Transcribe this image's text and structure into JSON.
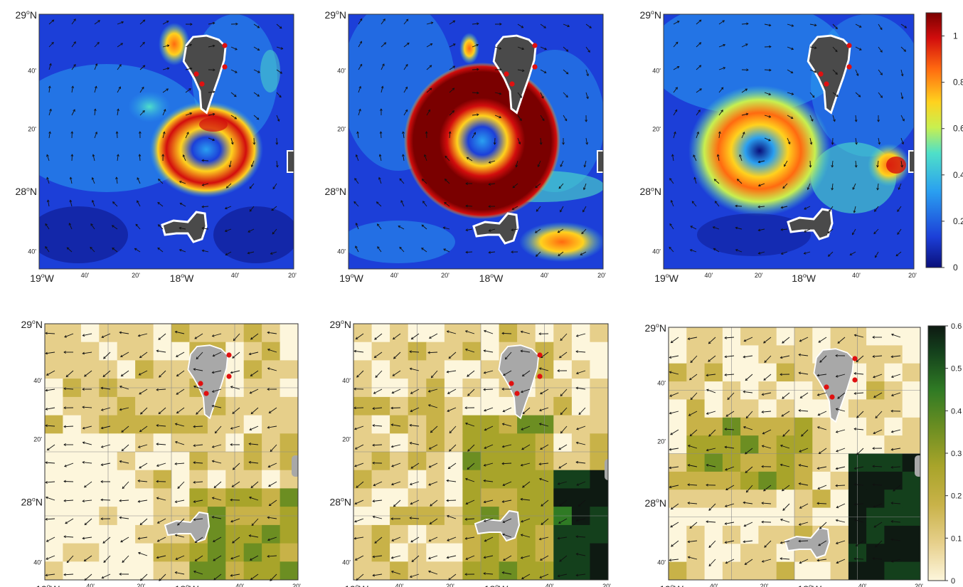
{
  "panels": [
    {
      "id": "top-1",
      "name": "current-speed-map-1"
    },
    {
      "id": "top-2",
      "name": "current-speed-map-2"
    },
    {
      "id": "top-3",
      "name": "current-speed-map-3"
    },
    {
      "id": "bottom-1",
      "name": "chlorophyll-map-1"
    },
    {
      "id": "bottom-2",
      "name": "chlorophyll-map-2"
    },
    {
      "id": "bottom-3",
      "name": "chlorophyll-map-3"
    }
  ],
  "axes": {
    "y_top": "29",
    "y_mid": "28",
    "y_unit": "N",
    "y_min_40": "40'",
    "y_min_20": "20'",
    "x_left": "19",
    "x_mid": "18",
    "x_unit": "W",
    "x_min_40": "40'",
    "x_min_20": "20'",
    "deg": "o"
  },
  "colorbar_top": {
    "ticks": [
      "1",
      "0.8",
      "0.6",
      "0.4",
      "0.2",
      "0"
    ],
    "values": [
      1,
      0.8,
      0.6,
      0.4,
      0.2,
      0
    ],
    "min": 0,
    "max": 1.1,
    "colors": [
      "#0a0f7a",
      "#1c3fd8",
      "#2aa0f0",
      "#4fe0c8",
      "#c8f050",
      "#ffd21e",
      "#ff6a10",
      "#d20d0d",
      "#7a0000"
    ]
  },
  "colorbar_bottom": {
    "ticks": [
      "0.6",
      "0.5",
      "0.4",
      "0.3",
      "0.2",
      "0.1",
      "0"
    ],
    "values": [
      0.6,
      0.5,
      0.4,
      0.3,
      0.2,
      0.1,
      0
    ],
    "min": 0,
    "max": 0.6,
    "colors": [
      "#fdf6dc",
      "#e6cf8a",
      "#c8b248",
      "#a8a42a",
      "#6c8e22",
      "#2f7a24",
      "#14401c",
      "#0e1a12"
    ]
  },
  "coast_markers": {
    "color": "#e01010"
  },
  "land_colors": {
    "top": "#4a4a4a",
    "bottom": "#a8a8a8"
  }
}
